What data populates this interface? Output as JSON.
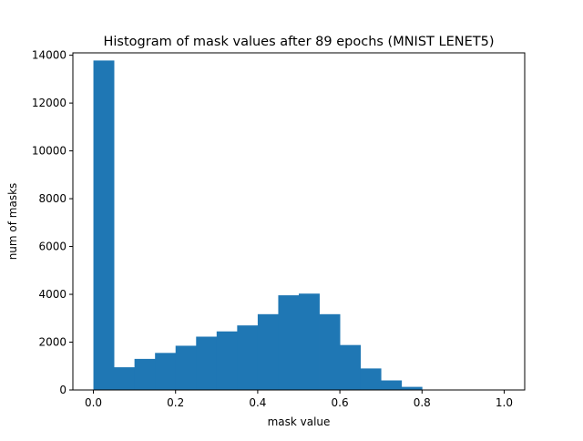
{
  "chart_data": {
    "type": "bar",
    "title": "Histogram of mask values after 89 epochs (MNIST LENET5)",
    "xlabel": "mask value",
    "ylabel": "num of masks",
    "xlim": [
      -0.05,
      1.05
    ],
    "ylim": [
      0,
      14100
    ],
    "x_ticks": [
      0.0,
      0.2,
      0.4,
      0.6,
      0.8,
      1.0
    ],
    "x_tick_labels": [
      "0.0",
      "0.2",
      "0.4",
      "0.6",
      "0.8",
      "1.0"
    ],
    "y_ticks": [
      0,
      2000,
      4000,
      6000,
      8000,
      10000,
      12000,
      14000
    ],
    "y_tick_labels": [
      "0",
      "2000",
      "4000",
      "6000",
      "8000",
      "10000",
      "12000",
      "14000"
    ],
    "bin_edges": [
      0.0,
      0.05,
      0.1,
      0.15,
      0.2,
      0.25,
      0.3,
      0.35,
      0.4,
      0.45,
      0.5,
      0.55,
      0.6,
      0.65,
      0.7,
      0.75,
      0.8,
      0.85,
      0.9,
      0.95,
      1.0
    ],
    "values": [
      13780,
      950,
      1300,
      1550,
      1850,
      2230,
      2450,
      2700,
      3170,
      3960,
      4030,
      3170,
      1880,
      900,
      400,
      130,
      0,
      0,
      0,
      0
    ],
    "grid": false,
    "color": "#1f77b4"
  }
}
